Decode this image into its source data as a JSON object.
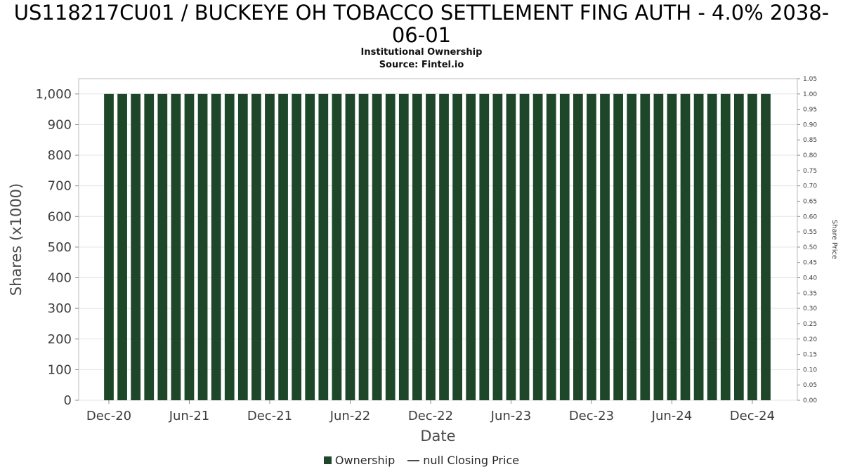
{
  "header": {
    "title": "US118217CU01 / BUCKEYE OH TOBACCO SETTLEMENT FING AUTH - 4.0% 2038-06-01",
    "subtitle": "Institutional Ownership",
    "source": "Source: Fintel.io"
  },
  "chart_data": {
    "type": "bar",
    "title": "US118217CU01 / BUCKEYE OH TOBACCO SETTLEMENT FING AUTH - 4.0% 2038-06-01",
    "subtitle": "Institutional Ownership",
    "source": "Source: Fintel.io",
    "xlabel": "Date",
    "ylabel_left": "Shares (x1000)",
    "ylabel_right": "Share Price",
    "ylim_left": [
      0,
      1050
    ],
    "ylim_right": [
      0,
      1.05
    ],
    "left_tick_step": 100,
    "left_tick_max": 1000,
    "right_tick_step": 0.05,
    "right_tick_max": 1.05,
    "grid": "horizontal",
    "bar_color": "#1e4729",
    "categories": [
      "Dec-20",
      "Jan-21",
      "Feb-21",
      "Mar-21",
      "Apr-21",
      "May-21",
      "Jun-21",
      "Jul-21",
      "Aug-21",
      "Sep-21",
      "Oct-21",
      "Nov-21",
      "Dec-21",
      "Jan-22",
      "Feb-22",
      "Mar-22",
      "Apr-22",
      "May-22",
      "Jun-22",
      "Jul-22",
      "Aug-22",
      "Sep-22",
      "Oct-22",
      "Nov-22",
      "Dec-22",
      "Jan-23",
      "Feb-23",
      "Mar-23",
      "Apr-23",
      "May-23",
      "Jun-23",
      "Jul-23",
      "Aug-23",
      "Sep-23",
      "Oct-23",
      "Nov-23",
      "Dec-23",
      "Jan-24",
      "Feb-24",
      "Mar-24",
      "Apr-24",
      "May-24",
      "Jun-24",
      "Jul-24",
      "Aug-24",
      "Sep-24",
      "Oct-24",
      "Nov-24",
      "Dec-24",
      "Jan-25"
    ],
    "values": [
      1000,
      1000,
      1000,
      1000,
      1000,
      1000,
      1000,
      1000,
      1000,
      1000,
      1000,
      1000,
      1000,
      1000,
      1000,
      1000,
      1000,
      1000,
      1000,
      1000,
      1000,
      1000,
      1000,
      1000,
      1000,
      1000,
      1000,
      1000,
      1000,
      1000,
      1000,
      1000,
      1000,
      1000,
      1000,
      1000,
      1000,
      1000,
      1000,
      1000,
      1000,
      1000,
      1000,
      1000,
      1000,
      1000,
      1000,
      1000,
      1000,
      1000
    ],
    "x_ticks": [
      {
        "index": 0,
        "label": "Dec-20"
      },
      {
        "index": 6,
        "label": "Jun-21"
      },
      {
        "index": 12,
        "label": "Dec-21"
      },
      {
        "index": 18,
        "label": "Jun-22"
      },
      {
        "index": 24,
        "label": "Dec-22"
      },
      {
        "index": 30,
        "label": "Jun-23"
      },
      {
        "index": 36,
        "label": "Dec-23"
      },
      {
        "index": 42,
        "label": "Jun-24"
      },
      {
        "index": 48,
        "label": "Dec-24"
      }
    ],
    "legend": [
      {
        "label": "Ownership",
        "marker": "square",
        "color": "#1e4729"
      },
      {
        "label": "null Closing Price",
        "marker": "line",
        "color": "#4a4a4a"
      }
    ],
    "legend_position": "bottom"
  }
}
